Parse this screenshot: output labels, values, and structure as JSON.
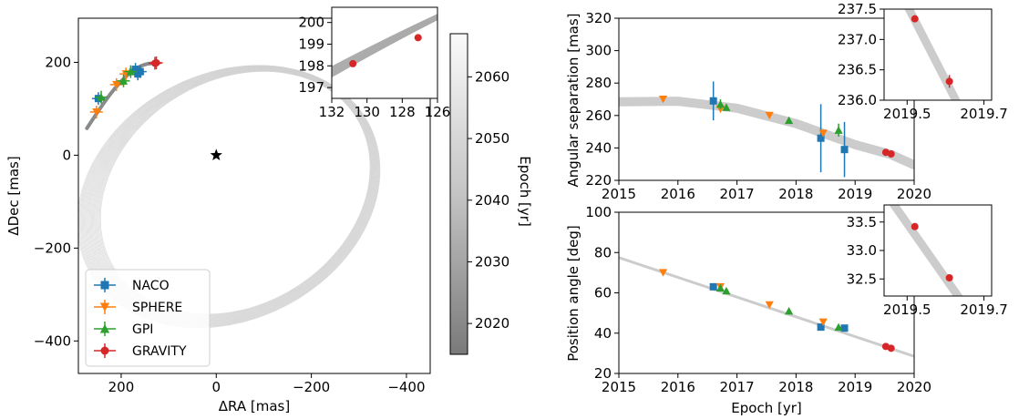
{
  "chart_data": [
    {
      "type": "scatter",
      "panel": "orbit",
      "xlabel": "ΔRA [mas]",
      "ylabel": "ΔDec [mas]",
      "xlim": [
        290,
        -450
      ],
      "ylim": [
        -470,
        295
      ],
      "xticks": [
        {
          "v": 200,
          "label": "200"
        },
        {
          "v": 0,
          "label": "0"
        },
        {
          "v": -200,
          "label": "−200"
        },
        {
          "v": -400,
          "label": "−400"
        }
      ],
      "yticks": [
        {
          "v": 200,
          "label": "200"
        },
        {
          "v": 0,
          "label": "0"
        },
        {
          "v": -200,
          "label": "−200"
        },
        {
          "v": -400,
          "label": "−400"
        }
      ],
      "star": {
        "x": 0,
        "y": 0,
        "marker": "star"
      },
      "series": [
        {
          "name": "NACO",
          "color": "#1f77b4",
          "marker": "square",
          "points": [
            [
              160,
              180
            ],
            [
              165,
              175
            ],
            [
              248,
              122
            ],
            [
              170,
              185
            ]
          ]
        },
        {
          "name": "SPHERE",
          "color": "#ff7f0e",
          "marker": "triangle-down",
          "points": [
            [
              252,
              93
            ],
            [
              210,
              152
            ],
            [
              190,
              175
            ]
          ]
        },
        {
          "name": "GPI",
          "color": "#2ca02c",
          "marker": "triangle-up",
          "points": [
            [
              242,
              125
            ],
            [
              195,
              160
            ],
            [
              180,
              180
            ]
          ]
        },
        {
          "name": "GRAVITY",
          "color": "#d62728",
          "marker": "circle",
          "points": [
            [
              129,
              198
            ],
            [
              126,
              199
            ]
          ]
        }
      ],
      "orbit_shape": {
        "cx": -33,
        "cy": -85,
        "a": 318,
        "b": 252,
        "rot_deg": -32
      },
      "legend_position": "lower-left",
      "inset": {
        "xlim": [
          132,
          126
        ],
        "ylim": [
          196.5,
          200.7
        ],
        "xticks": [
          {
            "v": 132,
            "label": "132"
          },
          {
            "v": 130,
            "label": "130"
          },
          {
            "v": 128,
            "label": "128"
          },
          {
            "v": 126,
            "label": "126"
          }
        ],
        "yticks": [
          {
            "v": 197,
            "label": "197"
          },
          {
            "v": 198,
            "label": "198"
          },
          {
            "v": 199,
            "label": "199"
          },
          {
            "v": 200,
            "label": "200"
          }
        ],
        "points": [
          [
            130.8,
            198.1
          ],
          [
            127.1,
            199.3
          ]
        ]
      },
      "colorbar": {
        "label": "Epoch [yr]",
        "range": [
          2015,
          2067
        ],
        "ticks": [
          {
            "v": 2020,
            "label": "2020"
          },
          {
            "v": 2030,
            "label": "2030"
          },
          {
            "v": 2040,
            "label": "2040"
          },
          {
            "v": 2050,
            "label": "2050"
          },
          {
            "v": 2060,
            "label": "2060"
          }
        ]
      }
    },
    {
      "type": "scatter",
      "panel": "separation",
      "xlabel": "",
      "ylabel": "Angular separation [mas]",
      "xlim": [
        2015,
        2020
      ],
      "ylim": [
        220,
        320
      ],
      "xticks": [
        {
          "v": 2015,
          "label": "2015"
        },
        {
          "v": 2016,
          "label": "2016"
        },
        {
          "v": 2017,
          "label": "2017"
        },
        {
          "v": 2018,
          "label": "2018"
        },
        {
          "v": 2019,
          "label": "2019"
        },
        {
          "v": 2020,
          "label": "2020"
        }
      ],
      "yticks": [
        {
          "v": 220,
          "label": "220"
        },
        {
          "v": 240,
          "label": "240"
        },
        {
          "v": 260,
          "label": "260"
        },
        {
          "v": 280,
          "label": "280"
        },
        {
          "v": 300,
          "label": "300"
        },
        {
          "v": 320,
          "label": "320"
        }
      ],
      "model": [
        [
          2015,
          268.5
        ],
        [
          2016,
          268.8
        ],
        [
          2017,
          264.5
        ],
        [
          2018,
          255
        ],
        [
          2019,
          242
        ],
        [
          2019.6,
          236
        ],
        [
          2020,
          229.5
        ]
      ],
      "series": [
        {
          "name": "NACO",
          "color": "#1f77b4",
          "marker": "square",
          "points": [
            [
              2016.6,
              269,
              12
            ],
            [
              2018.42,
              246,
              21
            ],
            [
              2018.82,
              239,
              17
            ]
          ]
        },
        {
          "name": "SPHERE",
          "color": "#ff7f0e",
          "marker": "triangle-down",
          "points": [
            [
              2015.75,
              270,
              0
            ],
            [
              2016.72,
              264,
              0
            ],
            [
              2017.55,
              260,
              0
            ],
            [
              2018.46,
              249,
              0
            ]
          ]
        },
        {
          "name": "GPI",
          "color": "#2ca02c",
          "marker": "triangle-up",
          "points": [
            [
              2016.72,
              267,
              3
            ],
            [
              2016.82,
              265,
              2
            ],
            [
              2017.88,
              257,
              2
            ],
            [
              2018.72,
              251,
              4
            ]
          ]
        },
        {
          "name": "GRAVITY",
          "color": "#d62728",
          "marker": "circle",
          "points": [
            [
              2019.52,
              237.3,
              0
            ],
            [
              2019.61,
              236.3,
              0
            ]
          ]
        }
      ],
      "inset": {
        "xlim": [
          2019.44,
          2019.72
        ],
        "ylim": [
          236.0,
          237.5
        ],
        "xticks": [
          {
            "v": 2019.5,
            "label": "2019.5"
          },
          {
            "v": 2019.7,
            "label": "2019.7"
          }
        ],
        "yticks": [
          {
            "v": 236.0,
            "label": "236.0"
          },
          {
            "v": 236.5,
            "label": "236.5"
          },
          {
            "v": 237.0,
            "label": "237.0"
          },
          {
            "v": 237.5,
            "label": "237.5"
          }
        ],
        "model": [
          [
            2019.44,
            238.3
          ],
          [
            2019.7,
            235.1
          ]
        ],
        "points": [
          [
            2019.52,
            237.34
          ],
          [
            2019.61,
            236.31
          ]
        ]
      }
    },
    {
      "type": "scatter",
      "panel": "position-angle",
      "xlabel": "Epoch [yr]",
      "ylabel": "Position angle [deg]",
      "xlim": [
        2015,
        2020
      ],
      "ylim": [
        20,
        100
      ],
      "xticks": [
        {
          "v": 2015,
          "label": "2015"
        },
        {
          "v": 2016,
          "label": "2016"
        },
        {
          "v": 2017,
          "label": "2017"
        },
        {
          "v": 2018,
          "label": "2018"
        },
        {
          "v": 2019,
          "label": "2019"
        },
        {
          "v": 2020,
          "label": "2020"
        }
      ],
      "yticks": [
        {
          "v": 20,
          "label": "20"
        },
        {
          "v": 40,
          "label": "40"
        },
        {
          "v": 60,
          "label": "60"
        },
        {
          "v": 80,
          "label": "80"
        },
        {
          "v": 100,
          "label": "100"
        }
      ],
      "model": [
        [
          2015,
          77.5
        ],
        [
          2020,
          28.5
        ]
      ],
      "series": [
        {
          "name": "NACO",
          "color": "#1f77b4",
          "marker": "square",
          "points": [
            [
              2016.6,
              63
            ],
            [
              2018.42,
              43
            ],
            [
              2018.82,
              42.5
            ]
          ]
        },
        {
          "name": "SPHERE",
          "color": "#ff7f0e",
          "marker": "triangle-down",
          "points": [
            [
              2015.75,
              70
            ],
            [
              2016.72,
              63
            ],
            [
              2017.55,
              54
            ],
            [
              2018.46,
              45.5
            ]
          ]
        },
        {
          "name": "GPI",
          "color": "#2ca02c",
          "marker": "triangle-up",
          "points": [
            [
              2016.72,
              62.5
            ],
            [
              2016.82,
              61
            ],
            [
              2017.88,
              51
            ],
            [
              2018.72,
              43
            ]
          ]
        },
        {
          "name": "GRAVITY",
          "color": "#d62728",
          "marker": "circle",
          "points": [
            [
              2019.52,
              33.4
            ],
            [
              2019.61,
              32.5
            ]
          ]
        }
      ],
      "inset": {
        "xlim": [
          2019.44,
          2019.72
        ],
        "ylim": [
          32.2,
          33.8
        ],
        "xticks": [
          {
            "v": 2019.5,
            "label": "2019.5"
          },
          {
            "v": 2019.7,
            "label": "2019.7"
          }
        ],
        "yticks": [
          {
            "v": 32.5,
            "label": "32.5"
          },
          {
            "v": 33.0,
            "label": "33.0"
          },
          {
            "v": 33.5,
            "label": "33.5"
          }
        ],
        "model": [
          [
            2019.44,
            34.05
          ],
          [
            2019.7,
            31.55
          ]
        ],
        "points": [
          [
            2019.52,
            33.42
          ],
          [
            2019.61,
            32.52
          ]
        ]
      }
    }
  ]
}
